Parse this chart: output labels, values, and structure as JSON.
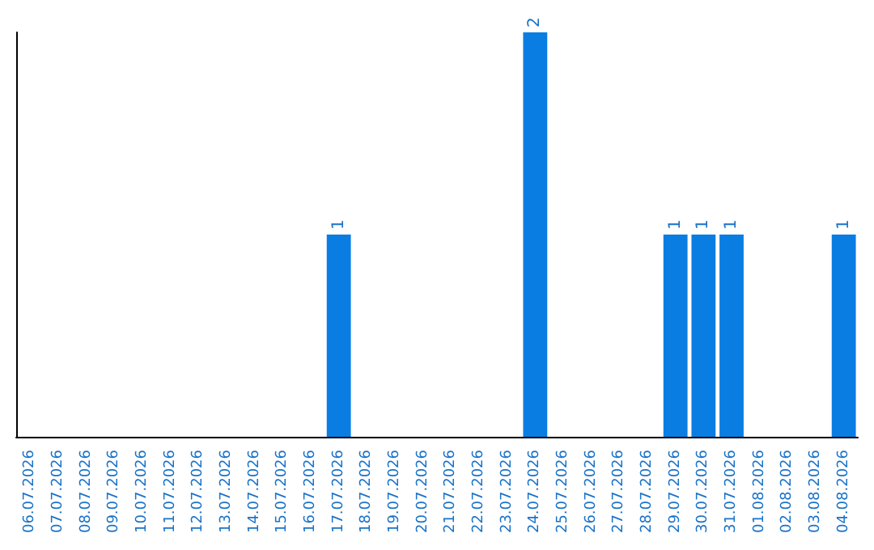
{
  "chart_data": {
    "type": "bar",
    "categories": [
      "06.07.2026",
      "07.07.2026",
      "08.07.2026",
      "09.07.2026",
      "10.07.2026",
      "11.07.2026",
      "12.07.2026",
      "13.07.2026",
      "14.07.2026",
      "15.07.2026",
      "16.07.2026",
      "17.07.2026",
      "18.07.2026",
      "19.07.2026",
      "20.07.2026",
      "21.07.2026",
      "22.07.2026",
      "23.07.2026",
      "24.07.2026",
      "25.07.2026",
      "26.07.2026",
      "27.07.2026",
      "28.07.2026",
      "29.07.2026",
      "30.07.2026",
      "31.07.2026",
      "01.08.2026",
      "02.08.2026",
      "03.08.2026",
      "04.08.2026"
    ],
    "values": [
      0,
      0,
      0,
      0,
      0,
      0,
      0,
      0,
      0,
      0,
      0,
      1,
      0,
      0,
      0,
      0,
      0,
      0,
      2,
      0,
      0,
      0,
      0,
      1,
      1,
      1,
      0,
      0,
      0,
      1
    ],
    "value_labels": [
      null,
      null,
      null,
      null,
      null,
      null,
      null,
      null,
      null,
      null,
      null,
      "1",
      null,
      null,
      null,
      null,
      null,
      null,
      "2",
      null,
      null,
      null,
      null,
      "1",
      "1",
      "1",
      null,
      null,
      null,
      "1"
    ],
    "color": "#0a7de3",
    "ylim": [
      0,
      2
    ],
    "tick_labels": "x"
  }
}
